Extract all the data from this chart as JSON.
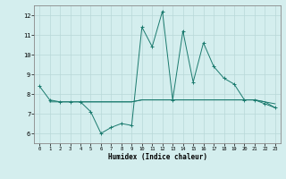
{
  "xlabel": "Humidex (Indice chaleur)",
  "x_values": [
    0,
    1,
    2,
    3,
    4,
    5,
    6,
    7,
    8,
    9,
    10,
    11,
    12,
    13,
    14,
    15,
    16,
    17,
    18,
    19,
    20,
    21,
    22,
    23
  ],
  "line1_y": [
    8.4,
    7.7,
    7.6,
    7.6,
    7.6,
    7.1,
    6.0,
    6.3,
    6.5,
    6.4,
    11.4,
    10.4,
    12.2,
    7.7,
    11.2,
    8.6,
    10.6,
    9.4,
    8.8,
    8.5,
    7.7,
    7.7,
    7.5,
    7.3
  ],
  "flat1_x": [
    1,
    2,
    3,
    4,
    5,
    6,
    7,
    8,
    9,
    10,
    11,
    12,
    13,
    14,
    15,
    16,
    17,
    18,
    19,
    20,
    21,
    22,
    23
  ],
  "flat1_y": [
    7.6,
    7.6,
    7.6,
    7.6,
    7.6,
    7.6,
    7.6,
    7.6,
    7.6,
    7.7,
    7.7,
    7.7,
    7.7,
    7.7,
    7.7,
    7.7,
    7.7,
    7.7,
    7.7,
    7.7,
    7.7,
    7.6,
    7.5
  ],
  "flat2_x": [
    4,
    5,
    6,
    7,
    8,
    9,
    10,
    11,
    12,
    13,
    14,
    15,
    16,
    17,
    18,
    19,
    20,
    21,
    22,
    23
  ],
  "flat2_y": [
    7.6,
    7.6,
    7.6,
    7.6,
    7.6,
    7.6,
    7.7,
    7.7,
    7.7,
    7.7,
    7.7,
    7.7,
    7.7,
    7.7,
    7.7,
    7.7,
    7.7,
    7.7,
    7.6,
    7.3
  ],
  "line_color": "#1a7a6e",
  "bg_color": "#d4eeee",
  "grid_color": "#b8d8d8",
  "ylim": [
    5.5,
    12.5
  ],
  "xlim": [
    -0.5,
    23.5
  ],
  "yticks": [
    6,
    7,
    8,
    9,
    10,
    11,
    12
  ],
  "xticks": [
    0,
    1,
    2,
    3,
    4,
    5,
    6,
    7,
    8,
    9,
    10,
    11,
    12,
    13,
    14,
    15,
    16,
    17,
    18,
    19,
    20,
    21,
    22,
    23
  ]
}
